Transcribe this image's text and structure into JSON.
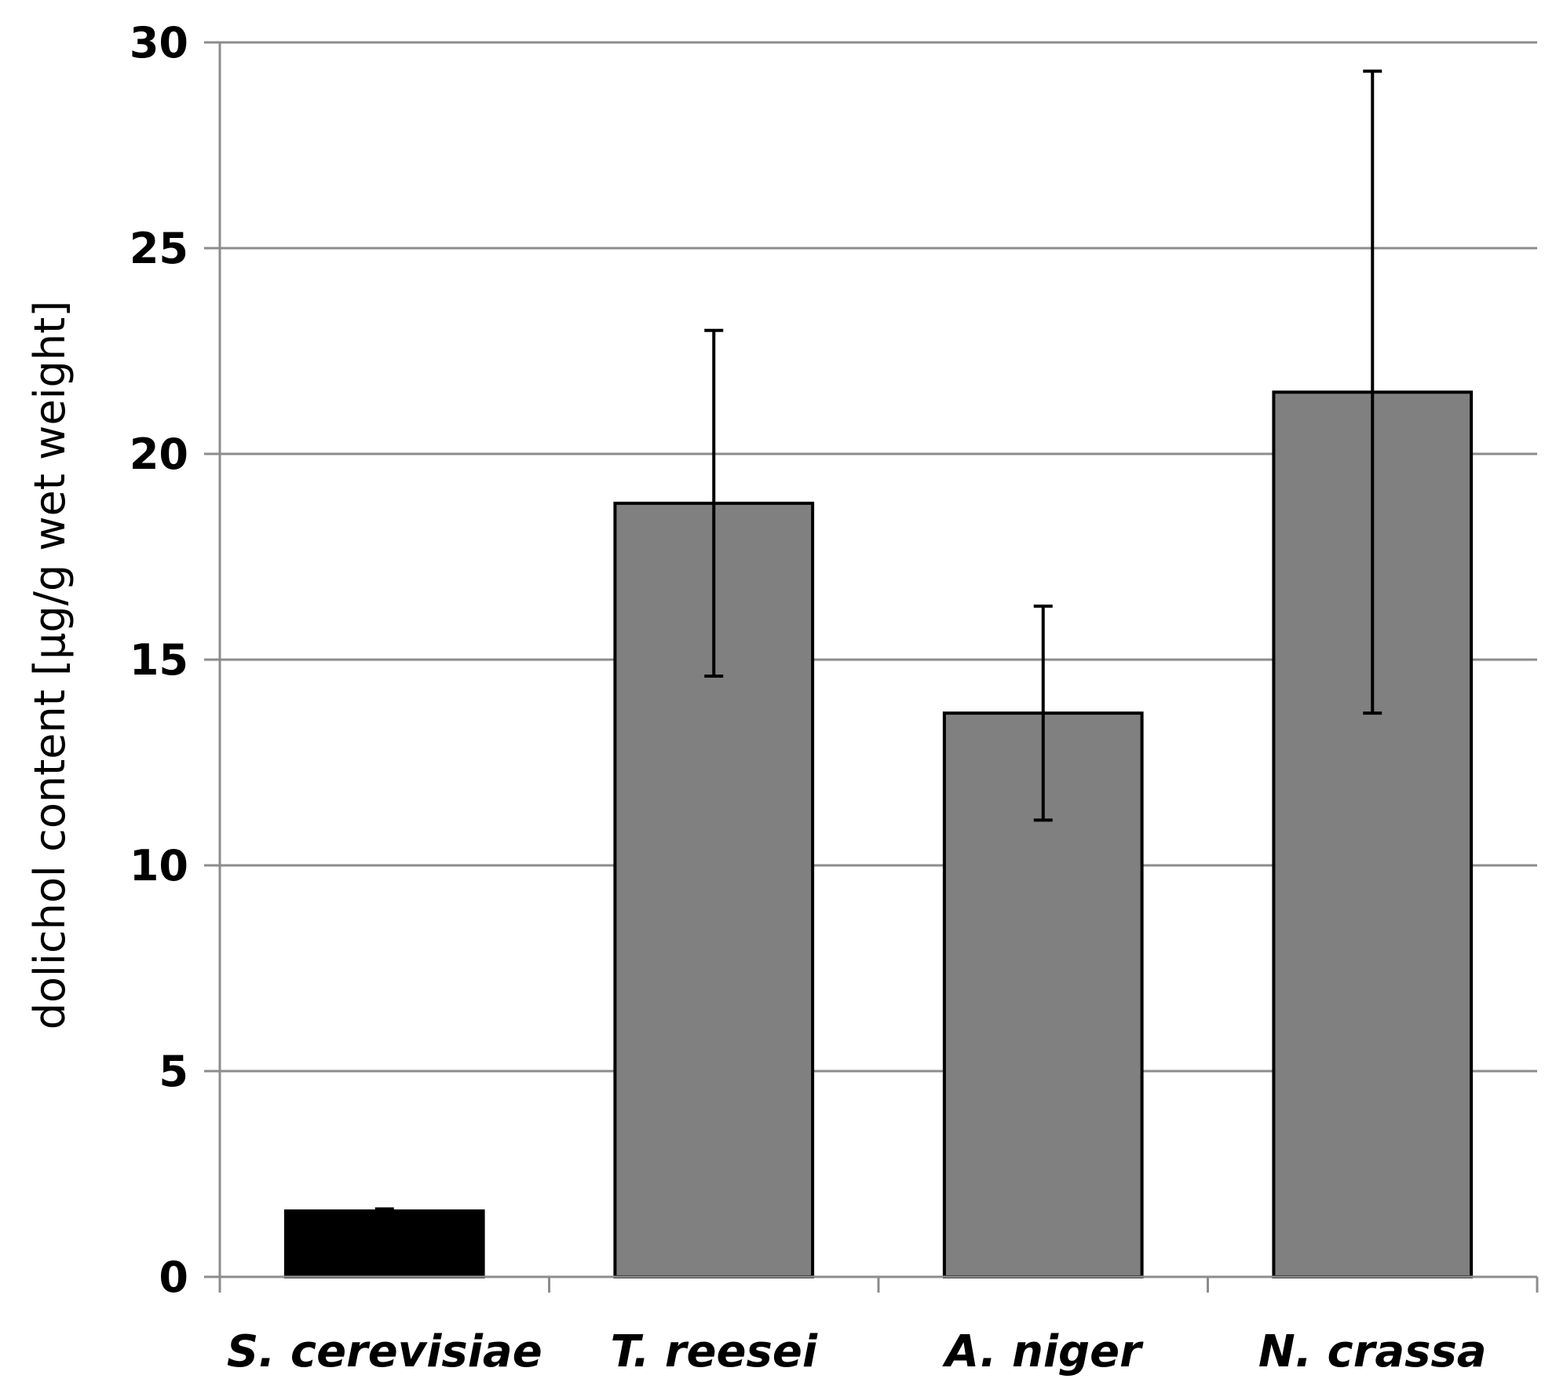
{
  "chart_data": {
    "type": "bar",
    "title": "",
    "xlabel": "",
    "ylabel": "dolichol content [μg/g wet weight]",
    "ylim": [
      0,
      30
    ],
    "yticks": [
      0,
      5,
      10,
      15,
      20,
      25,
      30
    ],
    "grid": true,
    "categories": [
      "S. cerevisiae",
      "T. reesei",
      "A. niger",
      "N. crassa"
    ],
    "values": [
      1.6,
      18.8,
      13.7,
      21.5
    ],
    "errors": [
      0.05,
      4.2,
      2.6,
      7.8
    ],
    "colors": [
      "#000000",
      "#808080",
      "#808080",
      "#808080"
    ],
    "gridline_color": "#8c8c8c",
    "edge_color": "#000000"
  }
}
